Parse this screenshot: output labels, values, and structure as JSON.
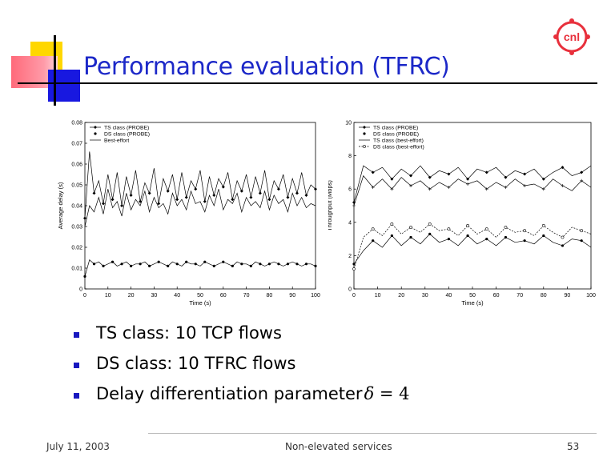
{
  "slide": {
    "title": "Performance evaluation (TFRC)",
    "logo_text": "cnl",
    "bullets": [
      "TS class: 10 TCP flows",
      "DS class: 10 TFRC flows",
      "Delay differentiation parameter"
    ],
    "formula": {
      "symbol": "δ",
      "rest": " = 4"
    },
    "footer": {
      "date": "July 11, 2003",
      "center": "Non-elevated services",
      "page": "53"
    }
  },
  "colors": {
    "title": "#1c28c8",
    "bullet": "#1818c0",
    "accent_red": "#e8303c",
    "deco_yellow": "#ffd700",
    "deco_blue": "#1818e0"
  },
  "chart_data": [
    {
      "type": "line",
      "xlabel": "Time (s)",
      "ylabel": "Average delay (s)",
      "xlim": [
        0,
        100
      ],
      "ylim": [
        0,
        0.08
      ],
      "xticks": [
        "0",
        "10",
        "20",
        "30",
        "40",
        "50",
        "60",
        "70",
        "80",
        "90",
        "100"
      ],
      "yticks": [
        "0",
        "0.01",
        "0.02",
        "0.03",
        "0.04",
        "0.05",
        "0.06",
        "0.07",
        "0.08"
      ],
      "legend": {
        "placement": "top-left",
        "entries": [
          "TS class (PROBE)",
          "DS class (PROBE)",
          "Best-effort"
        ]
      },
      "series": [
        {
          "name": "TS class (PROBE)",
          "marker": "diamond",
          "x": [
            0,
            2,
            4,
            6,
            8,
            10,
            12,
            14,
            16,
            18,
            20,
            22,
            24,
            26,
            28,
            30,
            32,
            34,
            36,
            38,
            40,
            42,
            44,
            46,
            48,
            50,
            52,
            54,
            56,
            58,
            60,
            62,
            64,
            66,
            68,
            70,
            72,
            74,
            76,
            78,
            80,
            82,
            84,
            86,
            88,
            90,
            92,
            94,
            96,
            98,
            100
          ],
          "y": [
            0.034,
            0.066,
            0.046,
            0.052,
            0.041,
            0.055,
            0.043,
            0.056,
            0.04,
            0.054,
            0.045,
            0.057,
            0.042,
            0.051,
            0.046,
            0.058,
            0.041,
            0.053,
            0.047,
            0.055,
            0.043,
            0.056,
            0.044,
            0.052,
            0.048,
            0.057,
            0.042,
            0.054,
            0.045,
            0.053,
            0.049,
            0.056,
            0.043,
            0.052,
            0.047,
            0.055,
            0.044,
            0.054,
            0.046,
            0.057,
            0.043,
            0.052,
            0.048,
            0.055,
            0.044,
            0.053,
            0.046,
            0.056,
            0.045,
            0.05,
            0.048
          ]
        },
        {
          "name": "DS class (PROBE)",
          "marker": "dot",
          "x": [
            0,
            2,
            4,
            6,
            8,
            10,
            12,
            14,
            16,
            18,
            20,
            22,
            24,
            26,
            28,
            30,
            32,
            34,
            36,
            38,
            40,
            42,
            44,
            46,
            48,
            50,
            52,
            54,
            56,
            58,
            60,
            62,
            64,
            66,
            68,
            70,
            72,
            74,
            76,
            78,
            80,
            82,
            84,
            86,
            88,
            90,
            92,
            94,
            96,
            98,
            100
          ],
          "y": [
            0.006,
            0.014,
            0.012,
            0.013,
            0.011,
            0.012,
            0.013,
            0.011,
            0.012,
            0.013,
            0.011,
            0.012,
            0.012,
            0.013,
            0.011,
            0.012,
            0.013,
            0.012,
            0.011,
            0.013,
            0.012,
            0.011,
            0.013,
            0.012,
            0.012,
            0.011,
            0.013,
            0.012,
            0.011,
            0.012,
            0.013,
            0.012,
            0.011,
            0.013,
            0.012,
            0.012,
            0.011,
            0.013,
            0.012,
            0.011,
            0.012,
            0.013,
            0.012,
            0.011,
            0.012,
            0.013,
            0.012,
            0.011,
            0.012,
            0.012,
            0.011
          ]
        },
        {
          "name": "Best-effort",
          "marker": "none",
          "x": [
            0,
            2,
            4,
            6,
            8,
            10,
            12,
            14,
            16,
            18,
            20,
            22,
            24,
            26,
            28,
            30,
            32,
            34,
            36,
            38,
            40,
            42,
            44,
            46,
            48,
            50,
            52,
            54,
            56,
            58,
            60,
            62,
            64,
            66,
            68,
            70,
            72,
            74,
            76,
            78,
            80,
            82,
            84,
            86,
            88,
            90,
            92,
            94,
            96,
            98,
            100
          ],
          "y": [
            0.03,
            0.04,
            0.037,
            0.044,
            0.036,
            0.048,
            0.039,
            0.042,
            0.035,
            0.046,
            0.038,
            0.043,
            0.04,
            0.047,
            0.037,
            0.044,
            0.039,
            0.041,
            0.036,
            0.046,
            0.04,
            0.043,
            0.038,
            0.047,
            0.041,
            0.042,
            0.037,
            0.045,
            0.04,
            0.048,
            0.038,
            0.043,
            0.041,
            0.046,
            0.037,
            0.044,
            0.04,
            0.042,
            0.039,
            0.047,
            0.038,
            0.045,
            0.041,
            0.043,
            0.037,
            0.046,
            0.04,
            0.044,
            0.039,
            0.041,
            0.04
          ]
        }
      ]
    },
    {
      "type": "line",
      "xlabel": "Time (s)",
      "ylabel": "Throughput (Mbps)",
      "xlim": [
        0,
        100
      ],
      "ylim": [
        0,
        10
      ],
      "xticks": [
        "0",
        "10",
        "20",
        "30",
        "40",
        "50",
        "60",
        "70",
        "80",
        "90",
        "100"
      ],
      "yticks": [
        "0",
        "2",
        "4",
        "6",
        "8",
        "10"
      ],
      "legend": {
        "placement": "top-left",
        "entries": [
          "TS class (PROBE)",
          "DS class (PROBE)",
          "TS class (best-effort)",
          "DS class (best-effort)"
        ]
      },
      "series": [
        {
          "name": "TS class (PROBE)",
          "marker": "diamond",
          "x": [
            0,
            4,
            8,
            12,
            16,
            20,
            24,
            28,
            32,
            36,
            40,
            44,
            48,
            52,
            56,
            60,
            64,
            68,
            72,
            76,
            80,
            84,
            88,
            92,
            96,
            100
          ],
          "y": [
            5.2,
            7.4,
            7.0,
            7.3,
            6.6,
            7.2,
            6.8,
            7.4,
            6.7,
            7.1,
            6.9,
            7.3,
            6.6,
            7.2,
            7.0,
            7.3,
            6.7,
            7.1,
            6.9,
            7.2,
            6.6,
            7.0,
            7.3,
            6.8,
            7.0,
            7.4
          ]
        },
        {
          "name": "DS class (PROBE)",
          "marker": "dot",
          "x": [
            0,
            4,
            8,
            12,
            16,
            20,
            24,
            28,
            32,
            36,
            40,
            44,
            48,
            52,
            56,
            60,
            64,
            68,
            72,
            76,
            80,
            84,
            88,
            92,
            96,
            100
          ],
          "y": [
            1.5,
            2.3,
            2.9,
            2.5,
            3.2,
            2.6,
            3.1,
            2.7,
            3.3,
            2.8,
            3.0,
            2.6,
            3.2,
            2.7,
            3.0,
            2.6,
            3.1,
            2.8,
            2.9,
            2.7,
            3.2,
            2.8,
            2.6,
            3.0,
            2.9,
            2.5
          ]
        },
        {
          "name": "TS class (best-effort)",
          "marker": "star",
          "x": [
            0,
            4,
            8,
            12,
            16,
            20,
            24,
            28,
            32,
            36,
            40,
            44,
            48,
            52,
            56,
            60,
            64,
            68,
            72,
            76,
            80,
            84,
            88,
            92,
            96,
            100
          ],
          "y": [
            5.0,
            6.8,
            6.1,
            6.6,
            6.0,
            6.7,
            6.2,
            6.5,
            6.0,
            6.4,
            6.1,
            6.6,
            6.3,
            6.5,
            6.0,
            6.4,
            6.1,
            6.6,
            6.2,
            6.3,
            6.0,
            6.6,
            6.2,
            5.9,
            6.5,
            6.1
          ]
        },
        {
          "name": "DS class (best-effort)",
          "marker": "circle",
          "x": [
            0,
            4,
            8,
            12,
            16,
            20,
            24,
            28,
            32,
            36,
            40,
            44,
            48,
            52,
            56,
            60,
            64,
            68,
            72,
            76,
            80,
            84,
            88,
            92,
            96,
            100
          ],
          "y": [
            1.2,
            3.1,
            3.6,
            3.2,
            3.9,
            3.3,
            3.7,
            3.4,
            3.9,
            3.5,
            3.6,
            3.2,
            3.8,
            3.3,
            3.6,
            3.1,
            3.7,
            3.4,
            3.5,
            3.2,
            3.8,
            3.4,
            3.1,
            3.7,
            3.5,
            3.3
          ]
        }
      ]
    }
  ]
}
